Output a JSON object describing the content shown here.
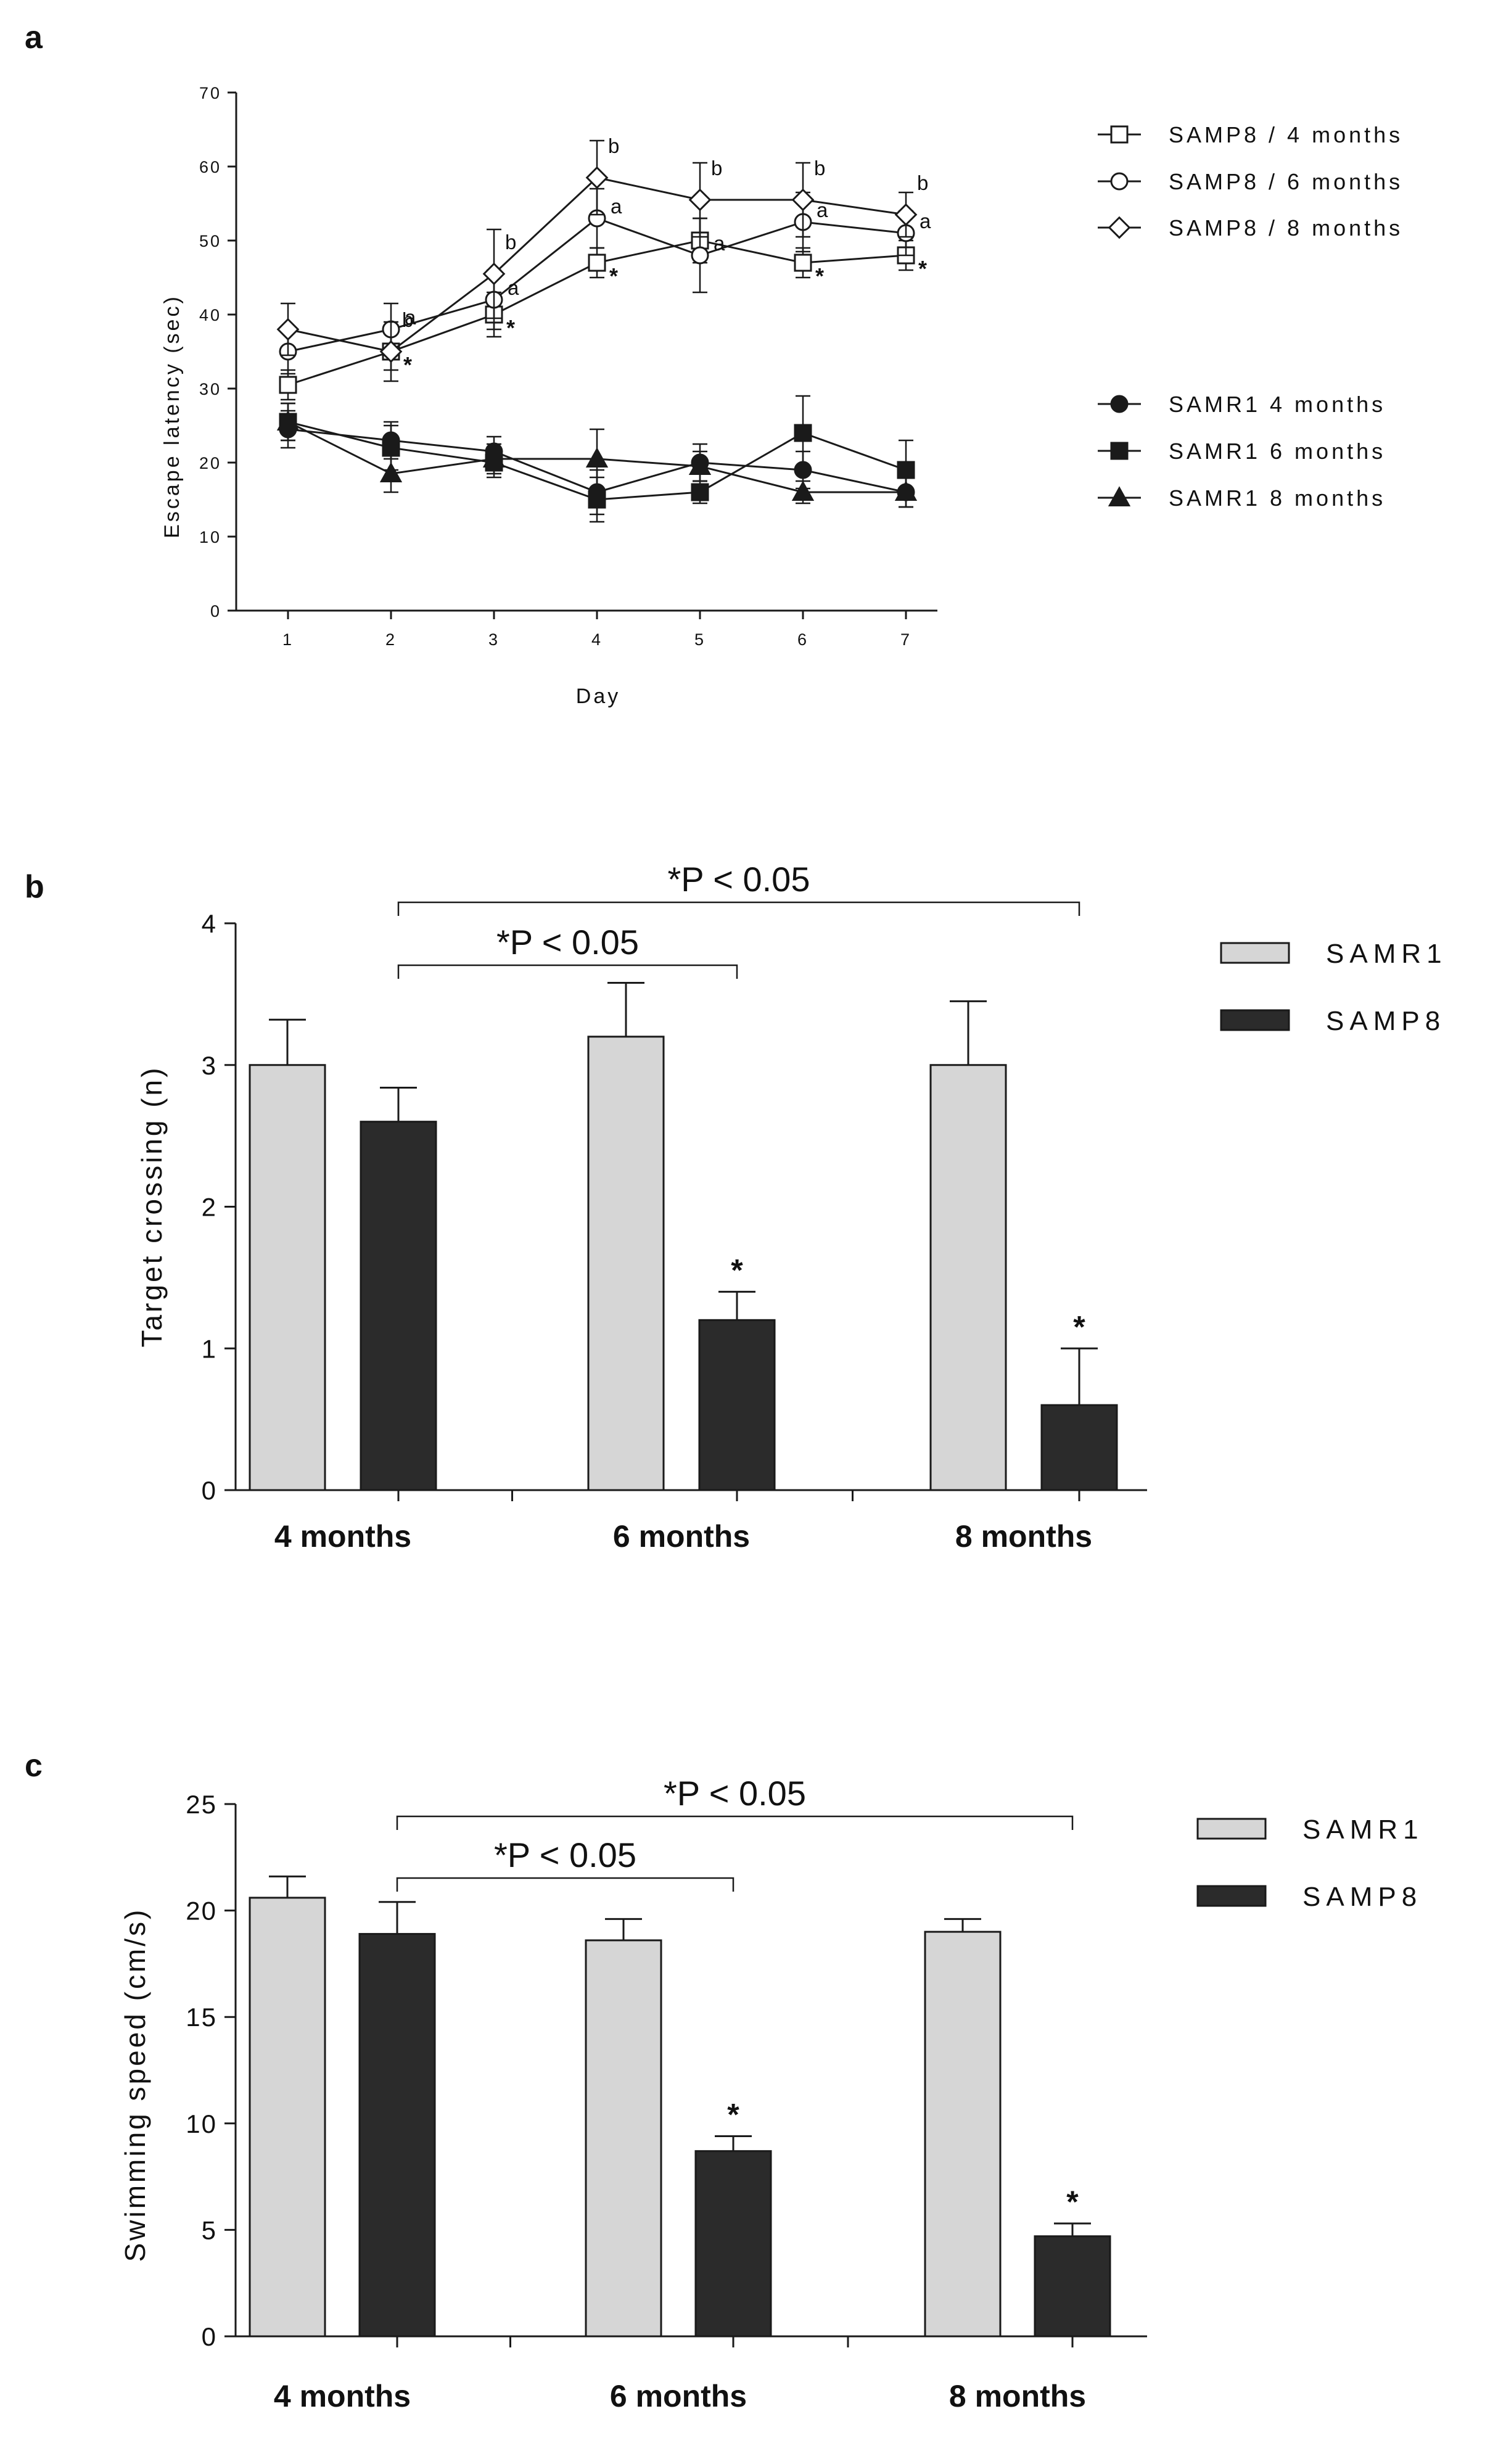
{
  "figure": {
    "panels": [
      "a",
      "b",
      "c"
    ]
  },
  "colors": {
    "samr1_fill": "#d6d6d6",
    "samp8_fill": "#2b2b2b",
    "line": "#1a1a1a"
  },
  "chart_data": [
    {
      "panel": "a",
      "type": "line",
      "title": "",
      "xlabel": "Day",
      "ylabel": "Escape latency (sec)",
      "x": [
        1,
        2,
        3,
        4,
        5,
        6,
        7
      ],
      "xticks": [
        "1",
        "2",
        "3",
        "4",
        "5",
        "6",
        "7"
      ],
      "yticks": [
        "0",
        "10",
        "20",
        "30",
        "40",
        "50",
        "60",
        "70"
      ],
      "ylim": [
        0,
        70
      ],
      "series": [
        {
          "name": "SAMP8 / 4 months",
          "marker": "square-open",
          "values": [
            30.5,
            35,
            40,
            47,
            50,
            47,
            48
          ],
          "errors": [
            2,
            2.5,
            3,
            2,
            3,
            2,
            2
          ],
          "sig": [
            "",
            "*",
            "*",
            "*",
            "",
            "*",
            "*"
          ]
        },
        {
          "name": "SAMP8 / 6 months",
          "marker": "circle-open",
          "values": [
            35,
            38,
            42,
            53,
            48,
            52.5,
            51
          ],
          "errors": [
            3,
            3.5,
            4,
            4,
            5,
            4,
            3
          ],
          "sig": [
            "",
            "a",
            "a",
            "a",
            "a",
            "a",
            "a"
          ]
        },
        {
          "name": "SAMP8 / 8 months",
          "marker": "diamond-open",
          "values": [
            38,
            35,
            45.5,
            58.5,
            55.5,
            55.5,
            53.5
          ],
          "errors": [
            3.5,
            4,
            6,
            5,
            5,
            5,
            3
          ],
          "sig": [
            "",
            "b",
            "b",
            "b",
            "b",
            "b",
            "b"
          ]
        },
        {
          "name": "SAMR1 4 months",
          "marker": "circle-filled",
          "values": [
            24.5,
            23,
            21.5,
            16,
            20,
            19,
            16
          ],
          "errors": [
            2.5,
            2.5,
            2,
            3,
            2.5,
            2.5,
            2
          ],
          "sig": []
        },
        {
          "name": "SAMR1 6 months",
          "marker": "square-filled",
          "values": [
            25.5,
            22,
            20,
            15,
            16,
            24,
            19
          ],
          "errors": [
            2.5,
            3,
            2,
            3,
            1.5,
            5,
            4
          ],
          "sig": []
        },
        {
          "name": "SAMR1 8 months",
          "marker": "triangle-filled",
          "values": [
            25.5,
            18.5,
            20.5,
            20.5,
            19.5,
            16,
            16
          ],
          "errors": [
            2.5,
            2.5,
            2,
            4,
            2,
            1.5,
            2
          ],
          "sig": []
        }
      ]
    },
    {
      "panel": "b",
      "type": "bar",
      "title": "",
      "xlabel": "",
      "ylabel": "Target crossing (n)",
      "categories": [
        "4 months",
        "6 months",
        "8 months"
      ],
      "yticks": [
        "0",
        "1",
        "2",
        "3",
        "4"
      ],
      "ylim": [
        0,
        4
      ],
      "series": [
        {
          "name": "SAMR1",
          "values": [
            3.0,
            3.2,
            3.0
          ],
          "errors": [
            0.32,
            0.38,
            0.45
          ],
          "sig": [
            "",
            "",
            ""
          ]
        },
        {
          "name": "SAMP8",
          "values": [
            2.6,
            1.2,
            0.6
          ],
          "errors": [
            0.24,
            0.2,
            0.4
          ],
          "sig": [
            "",
            "*",
            "*"
          ]
        }
      ],
      "brackets": [
        {
          "label": "*P < 0.05",
          "from": "4 months",
          "to": "6 months"
        },
        {
          "label": "*P < 0.05",
          "from": "4 months",
          "to": "8 months"
        }
      ]
    },
    {
      "panel": "c",
      "type": "bar",
      "title": "",
      "xlabel": "",
      "ylabel": "Swimming speed (cm/s)",
      "categories": [
        "4 months",
        "6 months",
        "8 months"
      ],
      "yticks": [
        "0",
        "5",
        "10",
        "15",
        "20",
        "25"
      ],
      "ylim": [
        0,
        25
      ],
      "series": [
        {
          "name": "SAMR1",
          "values": [
            20.6,
            18.6,
            19.0
          ],
          "errors": [
            1.0,
            1.0,
            0.6
          ],
          "sig": [
            "",
            "",
            ""
          ]
        },
        {
          "name": "SAMP8",
          "values": [
            18.9,
            8.7,
            4.7
          ],
          "errors": [
            1.5,
            0.7,
            0.6
          ],
          "sig": [
            "",
            "*",
            "*"
          ]
        }
      ],
      "brackets": [
        {
          "label": "*P < 0.05",
          "from": "4 months",
          "to": "6 months"
        },
        {
          "label": "*P < 0.05",
          "from": "4 months",
          "to": "8 months"
        }
      ]
    }
  ]
}
